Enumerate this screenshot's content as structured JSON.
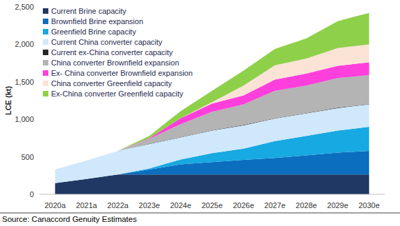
{
  "chart_data": {
    "type": "area",
    "stacked": true,
    "grid": false,
    "legend": "top-left",
    "y_label": "LCE (kt)",
    "source": "Source: Canaccord Genuity Estimates",
    "categories": [
      "2020a",
      "2021a",
      "2022a",
      "2023e",
      "2024e",
      "2025e",
      "2026e",
      "2027e",
      "2028e",
      "2029e",
      "2030e"
    ],
    "ylim": [
      0,
      2500
    ],
    "yticks": [
      0,
      500,
      {
        "value": 1000,
        "label": "1,000"
      },
      {
        "value": 1500,
        "label": "1,500"
      },
      {
        "value": 2000,
        "label": "2,000"
      },
      {
        "value": 2500,
        "label": "2,500"
      }
    ],
    "series": [
      {
        "name": "Current Brine capacity",
        "color": "#1f3864",
        "values": [
          150,
          205,
          265,
          265,
          265,
          265,
          265,
          265,
          265,
          265,
          265
        ]
      },
      {
        "name": "Brownfield Brine expansion",
        "color": "#0b6ebf",
        "values": [
          0,
          0,
          0,
          65,
          135,
          165,
          195,
          220,
          255,
          290,
          315
        ]
      },
      {
        "name": "Greenfield Brine capacity",
        "color": "#17a9e1",
        "values": [
          0,
          0,
          0,
          15,
          65,
          120,
          150,
          225,
          260,
          295,
          320
        ]
      },
      {
        "name": "Current China converter capacity",
        "color": "#cfe8fb",
        "values": [
          180,
          245,
          315,
          325,
          295,
          300,
          310,
          300,
          300,
          300,
          300
        ]
      },
      {
        "name": "Current ex-China converter capacity",
        "color": "#262626",
        "values": [
          0,
          0,
          0,
          5,
          5,
          5,
          5,
          5,
          5,
          5,
          5
        ]
      },
      {
        "name": "China converter  Brownfield expansion",
        "color": "#b4b4b4",
        "values": [
          0,
          0,
          0,
          65,
          170,
          245,
          275,
          365,
          365,
          395,
          385
        ]
      },
      {
        "name": "Ex- China converter Brownfield expansion",
        "color": "#ff3fdc",
        "values": [
          0,
          0,
          0,
          10,
          80,
          110,
          120,
          150,
          160,
          165,
          170
        ]
      },
      {
        "name": "China converter Greenfield capacity",
        "color": "#fbe3d6",
        "values": [
          0,
          0,
          0,
          0,
          0,
          20,
          130,
          190,
          200,
          235,
          240
        ]
      },
      {
        "name": "Ex-China converter Greenfield capacity",
        "color": "#8fd04b",
        "values": [
          0,
          0,
          0,
          30,
          95,
          150,
          200,
          220,
          270,
          360,
          420
        ]
      }
    ]
  }
}
